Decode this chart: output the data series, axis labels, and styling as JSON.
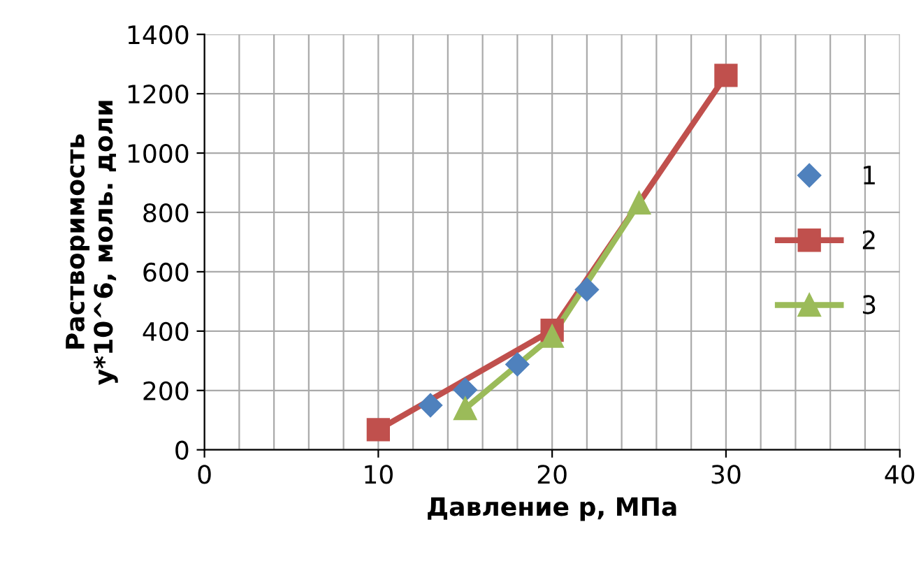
{
  "chart_data": {
    "type": "line",
    "xlabel": "Давление p, МПа",
    "ylabel": "Растворимость\ny*10^6, моль. доли",
    "xlim": [
      0,
      40
    ],
    "xticks": [
      0,
      10,
      20,
      30,
      40
    ],
    "ylim": [
      0,
      1400
    ],
    "yticks": [
      0,
      200,
      400,
      600,
      800,
      1000,
      1200,
      1400
    ],
    "grid": true,
    "legend": "right",
    "series": [
      {
        "name": "1",
        "type": "scatter",
        "marker": "diamond",
        "color": "#4f81bd",
        "x": [
          13,
          15,
          18,
          22
        ],
        "values": [
          150,
          202,
          288,
          540
        ]
      },
      {
        "name": "2",
        "marker": "square",
        "line_style": "solid",
        "color": "#c0504d",
        "x": [
          10,
          20,
          30
        ],
        "values": [
          68,
          403,
          1262
        ]
      },
      {
        "name": "3",
        "marker": "triangle",
        "line_style": "solid",
        "color": "#9bbb59",
        "x": [
          15,
          20,
          25
        ],
        "values": [
          139,
          383,
          832
        ]
      }
    ]
  }
}
